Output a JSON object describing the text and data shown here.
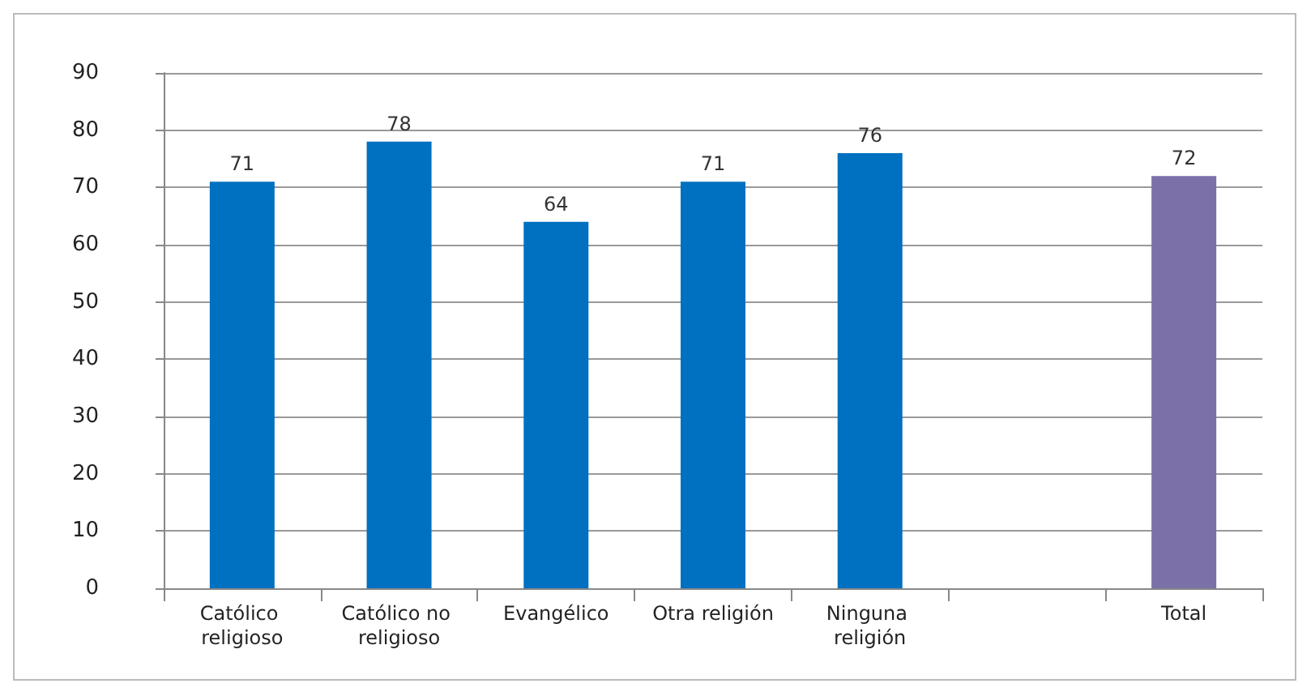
{
  "chart_data": {
    "type": "bar",
    "categories": [
      "Católico religioso",
      "Católico no religioso",
      "Evangélico",
      "Otra religión",
      "Ninguna religión",
      null,
      "Total"
    ],
    "values": [
      71,
      78,
      64,
      71,
      76,
      null,
      72
    ],
    "colors": [
      "#0070c0",
      "#0070c0",
      "#0070c0",
      "#0070c0",
      "#0070c0",
      null,
      "#7b70a8"
    ],
    "ylim": [
      0,
      90
    ],
    "yticks": [
      0,
      10,
      20,
      30,
      40,
      50,
      60,
      70,
      80,
      90
    ],
    "grid": "y",
    "data_labels": true
  }
}
